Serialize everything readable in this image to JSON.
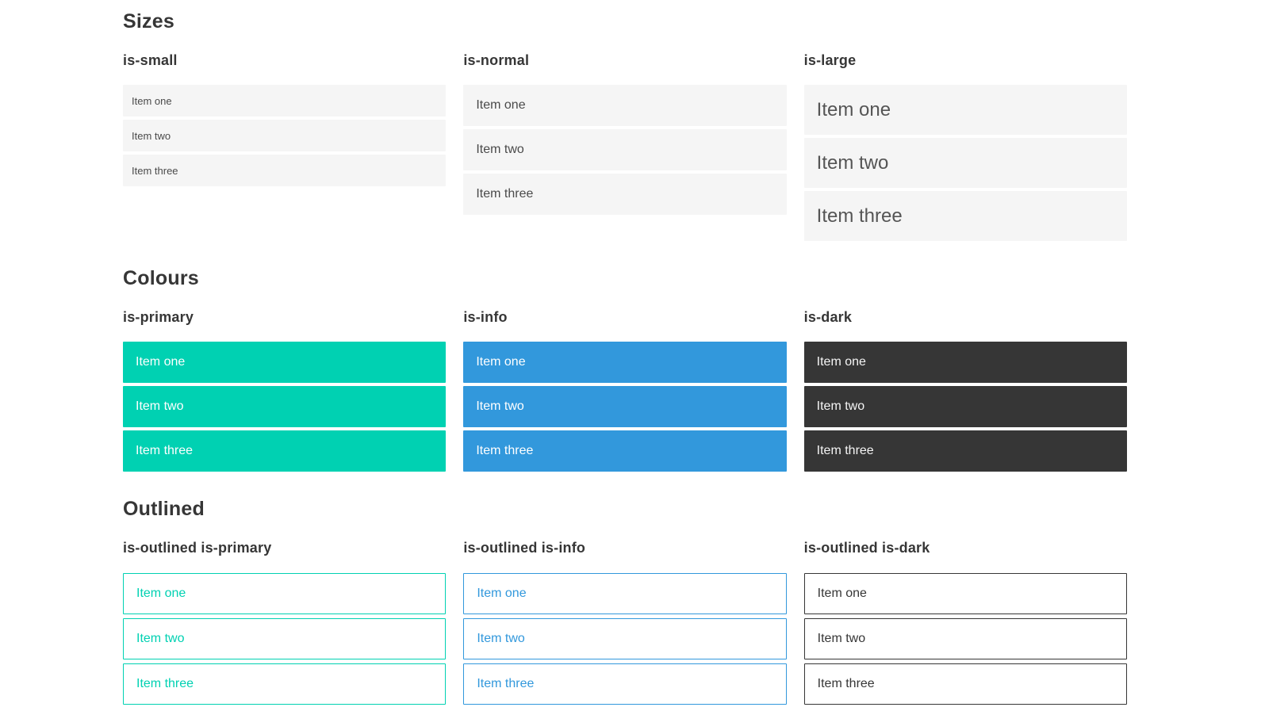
{
  "colors": {
    "primary": "#00d1b2",
    "info": "#3298dc",
    "dark": "#363636",
    "item_bg": "#f5f5f5",
    "item_text": "#4a4a4a",
    "heading_text": "#363636",
    "page_bg": "#ffffff"
  },
  "sections": {
    "sizes": {
      "title": "Sizes",
      "groups": {
        "small": {
          "label": "is-small",
          "items": [
            "Item one",
            "Item two",
            "Item three"
          ]
        },
        "normal": {
          "label": "is-normal",
          "items": [
            "Item one",
            "Item two",
            "Item three"
          ]
        },
        "large": {
          "label": "is-large",
          "items": [
            "Item one",
            "Item two",
            "Item three"
          ]
        }
      }
    },
    "colours": {
      "title": "Colours",
      "groups": {
        "primary": {
          "label": "is-primary",
          "items": [
            "Item one",
            "Item two",
            "Item three"
          ]
        },
        "info": {
          "label": "is-info",
          "items": [
            "Item one",
            "Item two",
            "Item three"
          ]
        },
        "dark": {
          "label": "is-dark",
          "items": [
            "Item one",
            "Item two",
            "Item three"
          ]
        }
      }
    },
    "outlined": {
      "title": "Outlined",
      "groups": {
        "primary": {
          "label": "is-outlined is-primary",
          "items": [
            "Item one",
            "Item two",
            "Item three"
          ]
        },
        "info": {
          "label": "is-outlined is-info",
          "items": [
            "Item one",
            "Item two",
            "Item three"
          ]
        },
        "dark": {
          "label": "is-outlined is-dark",
          "items": [
            "Item one",
            "Item two",
            "Item three"
          ]
        }
      }
    }
  }
}
